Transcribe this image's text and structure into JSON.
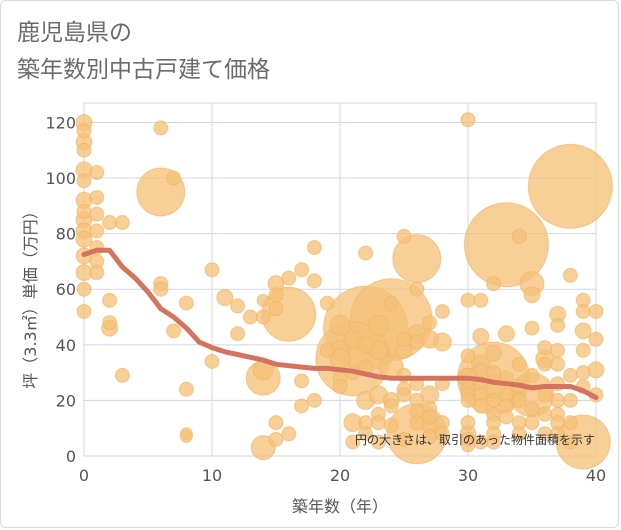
{
  "title_lines": [
    "鹿児島県の",
    "築年数別中古戸建て価格"
  ],
  "chart_data": {
    "type": "scatter",
    "title": "鹿児島県の 築年数別中古戸建て価格",
    "xlabel": "築年数（年）",
    "ylabel": "坪（3.3㎡）単価（万円）",
    "xlim": [
      0,
      40
    ],
    "ylim": [
      0,
      127
    ],
    "xticks": [
      0,
      10,
      20,
      30,
      40
    ],
    "yticks": [
      0,
      20,
      40,
      60,
      80,
      100,
      120
    ],
    "grid": true,
    "annotation": "円の大きさは、取引のあった物件面積を示す",
    "colors": {
      "bubble": "#f5c27a",
      "bubble_stroke": "#f0b35c",
      "trend": "#d4735e",
      "grid": "#cfd8e0"
    },
    "series": [
      {
        "kind": "bubbles",
        "points": [
          {
            "x": 0,
            "y": 120,
            "s": 8
          },
          {
            "x": 0,
            "y": 117,
            "s": 7
          },
          {
            "x": 0,
            "y": 113,
            "s": 8
          },
          {
            "x": 0,
            "y": 110,
            "s": 7
          },
          {
            "x": 0,
            "y": 103,
            "s": 8
          },
          {
            "x": 0,
            "y": 99,
            "s": 7
          },
          {
            "x": 0,
            "y": 92,
            "s": 8
          },
          {
            "x": 0,
            "y": 88,
            "s": 7
          },
          {
            "x": 0,
            "y": 85,
            "s": 8
          },
          {
            "x": 0,
            "y": 81,
            "s": 8
          },
          {
            "x": 0,
            "y": 78,
            "s": 8
          },
          {
            "x": 0,
            "y": 72,
            "s": 8
          },
          {
            "x": 0,
            "y": 66,
            "s": 8
          },
          {
            "x": 0,
            "y": 60,
            "s": 7
          },
          {
            "x": 0,
            "y": 52,
            "s": 7
          },
          {
            "x": 1,
            "y": 102,
            "s": 7
          },
          {
            "x": 1,
            "y": 93,
            "s": 7
          },
          {
            "x": 1,
            "y": 87,
            "s": 7
          },
          {
            "x": 1,
            "y": 81,
            "s": 7
          },
          {
            "x": 1,
            "y": 75,
            "s": 7
          },
          {
            "x": 1,
            "y": 70,
            "s": 7
          },
          {
            "x": 1,
            "y": 66,
            "s": 7
          },
          {
            "x": 2,
            "y": 84,
            "s": 7
          },
          {
            "x": 2,
            "y": 56,
            "s": 7
          },
          {
            "x": 2,
            "y": 48,
            "s": 7
          },
          {
            "x": 2,
            "y": 46,
            "s": 8
          },
          {
            "x": 3,
            "y": 84,
            "s": 7
          },
          {
            "x": 3,
            "y": 29,
            "s": 7
          },
          {
            "x": 6,
            "y": 118,
            "s": 7
          },
          {
            "x": 6,
            "y": 95,
            "s": 24
          },
          {
            "x": 6,
            "y": 62,
            "s": 7
          },
          {
            "x": 6,
            "y": 60,
            "s": 7
          },
          {
            "x": 7,
            "y": 100,
            "s": 7
          },
          {
            "x": 7,
            "y": 45,
            "s": 7
          },
          {
            "x": 8,
            "y": 55,
            "s": 7
          },
          {
            "x": 8,
            "y": 24,
            "s": 7
          },
          {
            "x": 8,
            "y": 8,
            "s": 6
          },
          {
            "x": 8,
            "y": 7,
            "s": 6
          },
          {
            "x": 10,
            "y": 67,
            "s": 7
          },
          {
            "x": 10,
            "y": 34,
            "s": 7
          },
          {
            "x": 11,
            "y": 57,
            "s": 8
          },
          {
            "x": 12,
            "y": 54,
            "s": 7
          },
          {
            "x": 12,
            "y": 44,
            "s": 7
          },
          {
            "x": 13,
            "y": 50,
            "s": 7
          },
          {
            "x": 14,
            "y": 56,
            "s": 6
          },
          {
            "x": 14,
            "y": 50,
            "s": 7
          },
          {
            "x": 14,
            "y": 31,
            "s": 10
          },
          {
            "x": 14,
            "y": 28,
            "s": 17
          },
          {
            "x": 14,
            "y": 3,
            "s": 12
          },
          {
            "x": 15,
            "y": 62,
            "s": 8
          },
          {
            "x": 15,
            "y": 58,
            "s": 7
          },
          {
            "x": 15,
            "y": 53,
            "s": 7
          },
          {
            "x": 15,
            "y": 12,
            "s": 7
          },
          {
            "x": 15,
            "y": 6,
            "s": 7
          },
          {
            "x": 16,
            "y": 64,
            "s": 7
          },
          {
            "x": 16,
            "y": 51,
            "s": 27
          },
          {
            "x": 16,
            "y": 8,
            "s": 7
          },
          {
            "x": 17,
            "y": 67,
            "s": 7
          },
          {
            "x": 17,
            "y": 27,
            "s": 7
          },
          {
            "x": 17,
            "y": 18,
            "s": 7
          },
          {
            "x": 18,
            "y": 75,
            "s": 7
          },
          {
            "x": 18,
            "y": 63,
            "s": 7
          },
          {
            "x": 18,
            "y": 20,
            "s": 7
          },
          {
            "x": 19,
            "y": 55,
            "s": 7
          },
          {
            "x": 19,
            "y": 38,
            "s": 7
          },
          {
            "x": 20,
            "y": 47,
            "s": 10
          },
          {
            "x": 20,
            "y": 38,
            "s": 10
          },
          {
            "x": 20,
            "y": 35,
            "s": 10
          },
          {
            "x": 20,
            "y": 28,
            "s": 7
          },
          {
            "x": 20,
            "y": 25,
            "s": 7
          },
          {
            "x": 21,
            "y": 42,
            "s": 9
          },
          {
            "x": 21,
            "y": 35,
            "s": 37
          },
          {
            "x": 21,
            "y": 30,
            "s": 7
          },
          {
            "x": 21,
            "y": 12,
            "s": 9
          },
          {
            "x": 21,
            "y": 5,
            "s": 7
          },
          {
            "x": 22,
            "y": 73,
            "s": 7
          },
          {
            "x": 22,
            "y": 46,
            "s": 42
          },
          {
            "x": 22,
            "y": 40,
            "s": 8
          },
          {
            "x": 22,
            "y": 32,
            "s": 7
          },
          {
            "x": 22,
            "y": 20,
            "s": 9
          },
          {
            "x": 22,
            "y": 12,
            "s": 7
          },
          {
            "x": 22,
            "y": 8,
            "s": 7
          },
          {
            "x": 23,
            "y": 47,
            "s": 10
          },
          {
            "x": 23,
            "y": 38,
            "s": 9
          },
          {
            "x": 23,
            "y": 22,
            "s": 9
          },
          {
            "x": 23,
            "y": 15,
            "s": 7
          },
          {
            "x": 23,
            "y": 12,
            "s": 7
          },
          {
            "x": 23,
            "y": 5,
            "s": 7
          },
          {
            "x": 24,
            "y": 55,
            "s": 7
          },
          {
            "x": 24,
            "y": 49,
            "s": 41
          },
          {
            "x": 24,
            "y": 32,
            "s": 12
          },
          {
            "x": 24,
            "y": 20,
            "s": 8
          },
          {
            "x": 24,
            "y": 18,
            "s": 7
          },
          {
            "x": 24,
            "y": 11,
            "s": 7
          },
          {
            "x": 25,
            "y": 79,
            "s": 7
          },
          {
            "x": 25,
            "y": 42,
            "s": 7
          },
          {
            "x": 25,
            "y": 38,
            "s": 8
          },
          {
            "x": 25,
            "y": 29,
            "s": 7
          },
          {
            "x": 25,
            "y": 24,
            "s": 7
          },
          {
            "x": 25,
            "y": 22,
            "s": 7
          },
          {
            "x": 25,
            "y": 6,
            "s": 7
          },
          {
            "x": 26,
            "y": 71,
            "s": 24
          },
          {
            "x": 26,
            "y": 60,
            "s": 7
          },
          {
            "x": 26,
            "y": 44,
            "s": 9
          },
          {
            "x": 26,
            "y": 41,
            "s": 7
          },
          {
            "x": 26,
            "y": 26,
            "s": 7
          },
          {
            "x": 26,
            "y": 20,
            "s": 7
          },
          {
            "x": 26,
            "y": 16,
            "s": 7
          },
          {
            "x": 26,
            "y": 12,
            "s": 7
          },
          {
            "x": 26,
            "y": 8,
            "s": 30
          },
          {
            "x": 27,
            "y": 48,
            "s": 7
          },
          {
            "x": 27,
            "y": 42,
            "s": 9
          },
          {
            "x": 27,
            "y": 22,
            "s": 9
          },
          {
            "x": 27,
            "y": 17,
            "s": 7
          },
          {
            "x": 27,
            "y": 14,
            "s": 7
          },
          {
            "x": 27,
            "y": 11,
            "s": 8
          },
          {
            "x": 27,
            "y": 7,
            "s": 7
          },
          {
            "x": 28,
            "y": 52,
            "s": 7
          },
          {
            "x": 28,
            "y": 41,
            "s": 9
          },
          {
            "x": 28,
            "y": 26,
            "s": 7
          },
          {
            "x": 28,
            "y": 12,
            "s": 7
          },
          {
            "x": 28,
            "y": 8,
            "s": 7
          },
          {
            "x": 30,
            "y": 121,
            "s": 7
          },
          {
            "x": 30,
            "y": 56,
            "s": 7
          },
          {
            "x": 30,
            "y": 36,
            "s": 7
          },
          {
            "x": 30,
            "y": 29,
            "s": 7
          },
          {
            "x": 30,
            "y": 28,
            "s": 10
          },
          {
            "x": 30,
            "y": 25,
            "s": 7
          },
          {
            "x": 30,
            "y": 24,
            "s": 7
          },
          {
            "x": 30,
            "y": 22,
            "s": 7
          },
          {
            "x": 30,
            "y": 20,
            "s": 7
          },
          {
            "x": 30,
            "y": 12,
            "s": 7
          },
          {
            "x": 30,
            "y": 8,
            "s": 8
          },
          {
            "x": 30,
            "y": 6,
            "s": 7
          },
          {
            "x": 30,
            "y": 4,
            "s": 7
          },
          {
            "x": 31,
            "y": 56,
            "s": 7
          },
          {
            "x": 31,
            "y": 43,
            "s": 8
          },
          {
            "x": 31,
            "y": 33,
            "s": 9
          },
          {
            "x": 31,
            "y": 31,
            "s": 7
          },
          {
            "x": 31,
            "y": 26,
            "s": 7
          },
          {
            "x": 31,
            "y": 22,
            "s": 7
          },
          {
            "x": 31,
            "y": 18,
            "s": 7
          },
          {
            "x": 31,
            "y": 5,
            "s": 7
          },
          {
            "x": 32,
            "y": 62,
            "s": 7
          },
          {
            "x": 32,
            "y": 37,
            "s": 8
          },
          {
            "x": 32,
            "y": 30,
            "s": 7
          },
          {
            "x": 32,
            "y": 28,
            "s": 36
          },
          {
            "x": 32,
            "y": 25,
            "s": 12
          },
          {
            "x": 32,
            "y": 20,
            "s": 7
          },
          {
            "x": 32,
            "y": 15,
            "s": 7
          },
          {
            "x": 32,
            "y": 12,
            "s": 7
          },
          {
            "x": 32,
            "y": 8,
            "s": 7
          },
          {
            "x": 32,
            "y": 5,
            "s": 7
          },
          {
            "x": 33,
            "y": 76,
            "s": 42
          },
          {
            "x": 33,
            "y": 44,
            "s": 8
          },
          {
            "x": 33,
            "y": 28,
            "s": 7
          },
          {
            "x": 33,
            "y": 22,
            "s": 7
          },
          {
            "x": 33,
            "y": 18,
            "s": 7
          },
          {
            "x": 33,
            "y": 14,
            "s": 7
          },
          {
            "x": 34,
            "y": 79,
            "s": 7
          },
          {
            "x": 34,
            "y": 33,
            "s": 7
          },
          {
            "x": 34,
            "y": 25,
            "s": 7
          },
          {
            "x": 34,
            "y": 20,
            "s": 7
          },
          {
            "x": 34,
            "y": 12,
            "s": 7
          },
          {
            "x": 34,
            "y": 8,
            "s": 7
          },
          {
            "x": 35,
            "y": 62,
            "s": 12
          },
          {
            "x": 35,
            "y": 58,
            "s": 8
          },
          {
            "x": 35,
            "y": 46,
            "s": 7
          },
          {
            "x": 35,
            "y": 29,
            "s": 7
          },
          {
            "x": 35,
            "y": 22,
            "s": 22
          },
          {
            "x": 35,
            "y": 17,
            "s": 7
          },
          {
            "x": 35,
            "y": 12,
            "s": 7
          },
          {
            "x": 36,
            "y": 39,
            "s": 7
          },
          {
            "x": 36,
            "y": 35,
            "s": 9
          },
          {
            "x": 36,
            "y": 33,
            "s": 7
          },
          {
            "x": 36,
            "y": 22,
            "s": 7
          },
          {
            "x": 36,
            "y": 15,
            "s": 7
          },
          {
            "x": 36,
            "y": 8,
            "s": 7
          },
          {
            "x": 37,
            "y": 51,
            "s": 8
          },
          {
            "x": 37,
            "y": 47,
            "s": 7
          },
          {
            "x": 37,
            "y": 38,
            "s": 7
          },
          {
            "x": 37,
            "y": 33,
            "s": 7
          },
          {
            "x": 37,
            "y": 26,
            "s": 7
          },
          {
            "x": 37,
            "y": 20,
            "s": 7
          },
          {
            "x": 37,
            "y": 15,
            "s": 7
          },
          {
            "x": 37,
            "y": 12,
            "s": 7
          },
          {
            "x": 37,
            "y": 8,
            "s": 7
          },
          {
            "x": 38,
            "y": 97,
            "s": 42
          },
          {
            "x": 38,
            "y": 65,
            "s": 7
          },
          {
            "x": 38,
            "y": 29,
            "s": 7
          },
          {
            "x": 38,
            "y": 20,
            "s": 7
          },
          {
            "x": 38,
            "y": 12,
            "s": 7
          },
          {
            "x": 38,
            "y": 5,
            "s": 7
          },
          {
            "x": 39,
            "y": 56,
            "s": 7
          },
          {
            "x": 39,
            "y": 52,
            "s": 7
          },
          {
            "x": 39,
            "y": 45,
            "s": 8
          },
          {
            "x": 39,
            "y": 38,
            "s": 7
          },
          {
            "x": 39,
            "y": 30,
            "s": 7
          },
          {
            "x": 39,
            "y": 25,
            "s": 7
          },
          {
            "x": 39,
            "y": 5,
            "s": 27
          },
          {
            "x": 40,
            "y": 52,
            "s": 7
          },
          {
            "x": 40,
            "y": 42,
            "s": 7
          },
          {
            "x": 40,
            "y": 31,
            "s": 8
          },
          {
            "x": 40,
            "y": 22,
            "s": 7
          }
        ]
      },
      {
        "kind": "trend",
        "x": [
          0,
          1,
          2,
          3,
          4,
          5,
          6,
          7,
          8,
          9,
          10,
          11,
          12,
          13,
          14,
          15,
          16,
          17,
          18,
          19,
          20,
          21,
          22,
          23,
          24,
          25,
          26,
          27,
          28,
          29,
          30,
          31,
          32,
          33,
          34,
          35,
          36,
          37,
          38,
          39,
          40
        ],
        "y": [
          72.5,
          74,
          74,
          68,
          64,
          59,
          53,
          50,
          46,
          41,
          39,
          37.5,
          36.5,
          35.5,
          34.5,
          33,
          32.5,
          32,
          31.5,
          31.5,
          31,
          30.5,
          29.5,
          28.5,
          28,
          28,
          28,
          28,
          28,
          28,
          28,
          27.5,
          26.5,
          26,
          25.5,
          24.5,
          25,
          25,
          25,
          23.5,
          21
        ]
      }
    ]
  }
}
